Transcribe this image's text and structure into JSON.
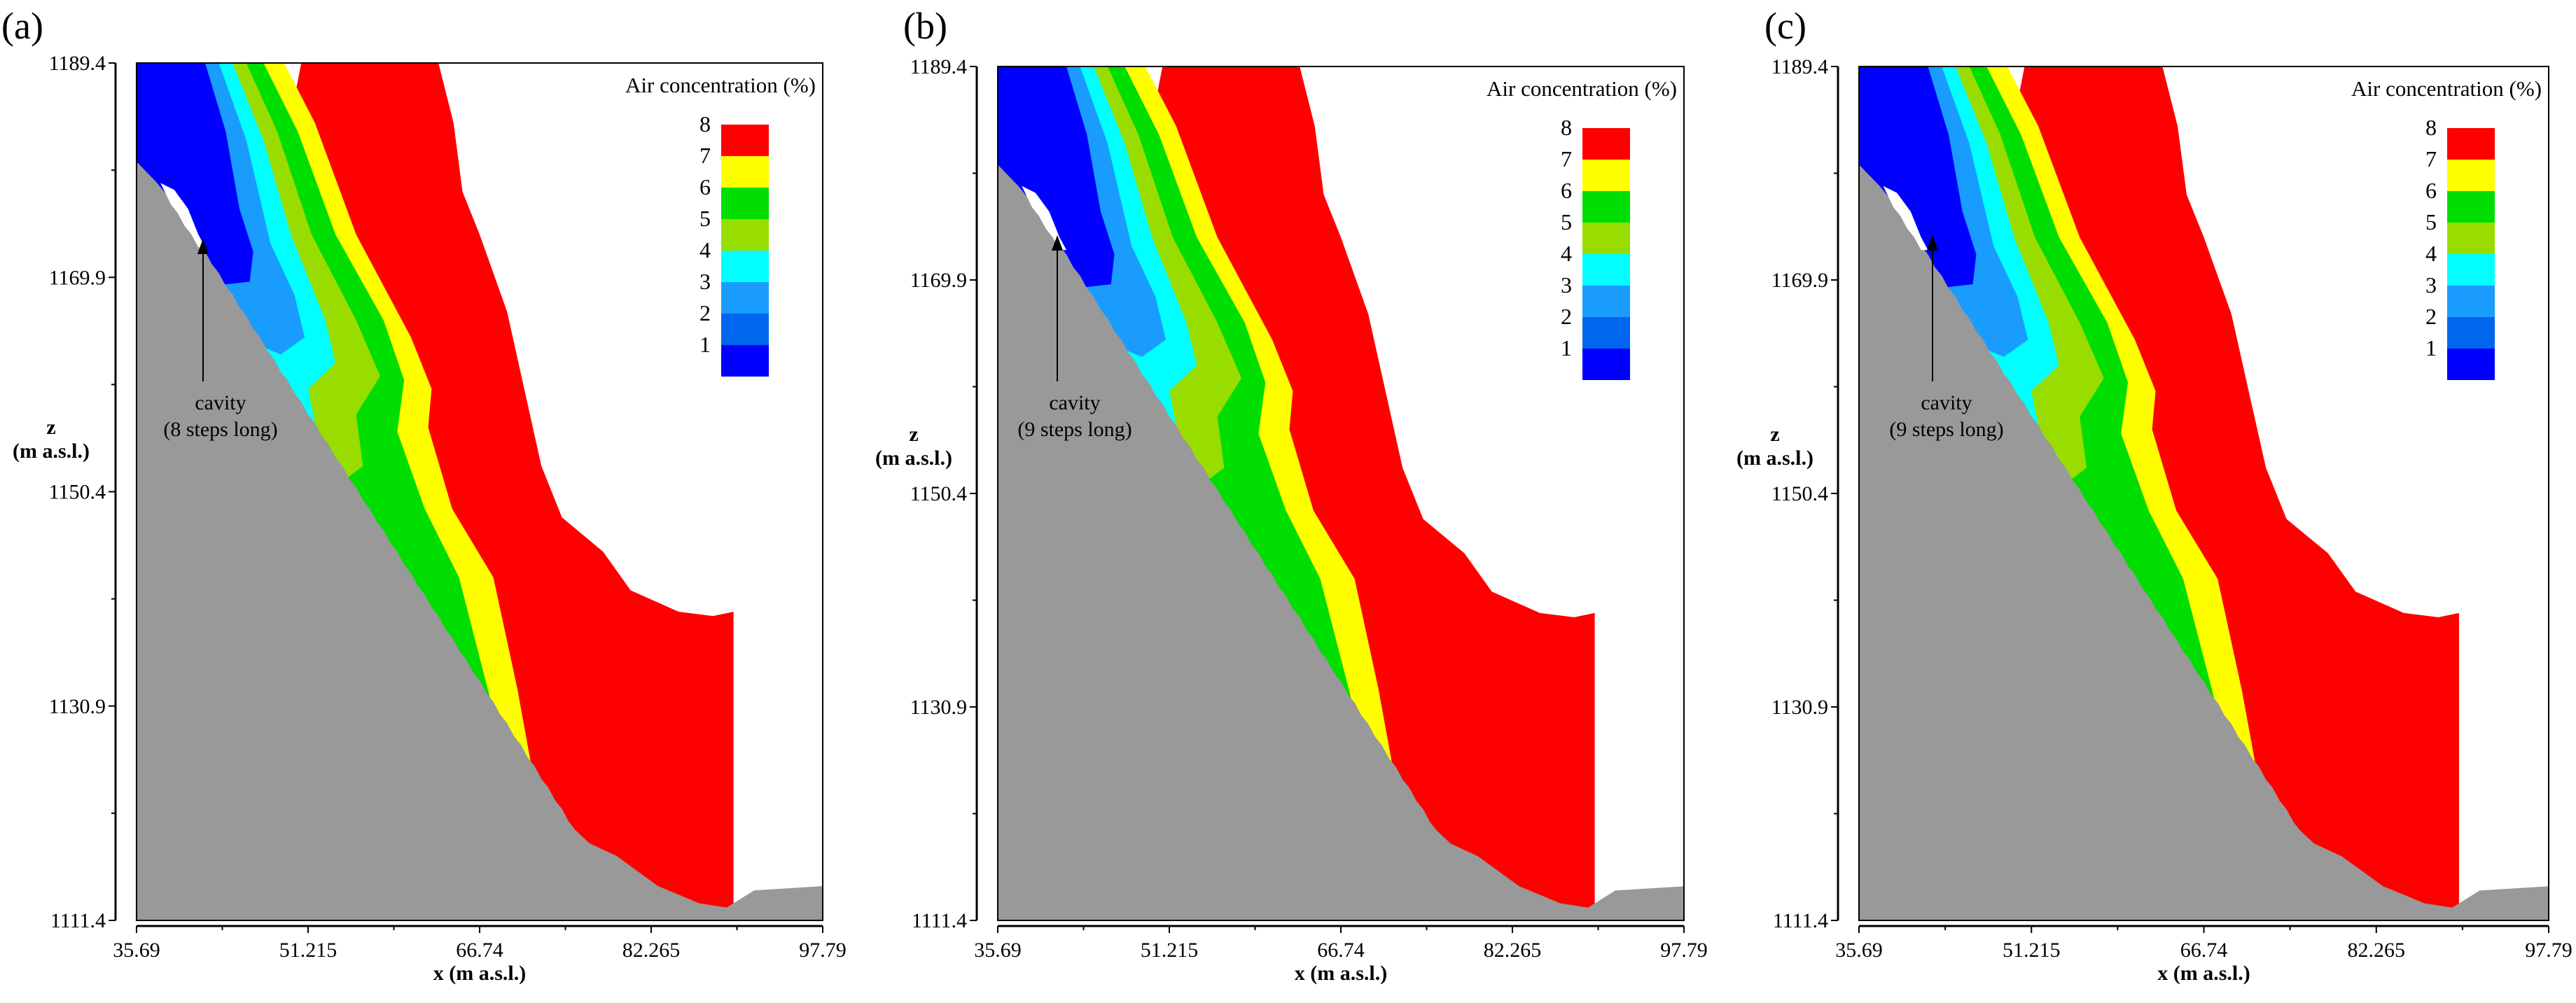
{
  "figure": {
    "legend": {
      "title": "Air concentration (%)",
      "levels": [
        "8",
        "7",
        "6",
        "5",
        "4",
        "3",
        "2",
        "1"
      ],
      "colors": [
        "#ff0000",
        "#ffff00",
        "#00dd00",
        "#99dd00",
        "#00ffff",
        "#1a9cff",
        "#0066ee",
        "#0000ff"
      ]
    },
    "colors": {
      "bed": "#999999",
      "background": "#ffffff",
      "high_air": "#ff0000"
    },
    "axes": {
      "x_title": "x (m a.s.l.)",
      "z_title": "z",
      "z_title_line2": "(m a.s.l.)",
      "x_ticks": [
        "35.69",
        "51.215",
        "66.74",
        "82.265",
        "97.79"
      ],
      "z_ticks": [
        "1189.4",
        "1169.9",
        "1150.4",
        "1130.9",
        "1111.4"
      ]
    },
    "panels": [
      {
        "label": "(a)",
        "annotation_line1": "cavity",
        "annotation_line2": "(8 steps long)"
      },
      {
        "label": "(b)",
        "annotation_line1": "cavity",
        "annotation_line2": "(9 steps long)"
      },
      {
        "label": "(c)",
        "annotation_line1": "cavity",
        "annotation_line2": "(9 steps long)"
      }
    ]
  }
}
